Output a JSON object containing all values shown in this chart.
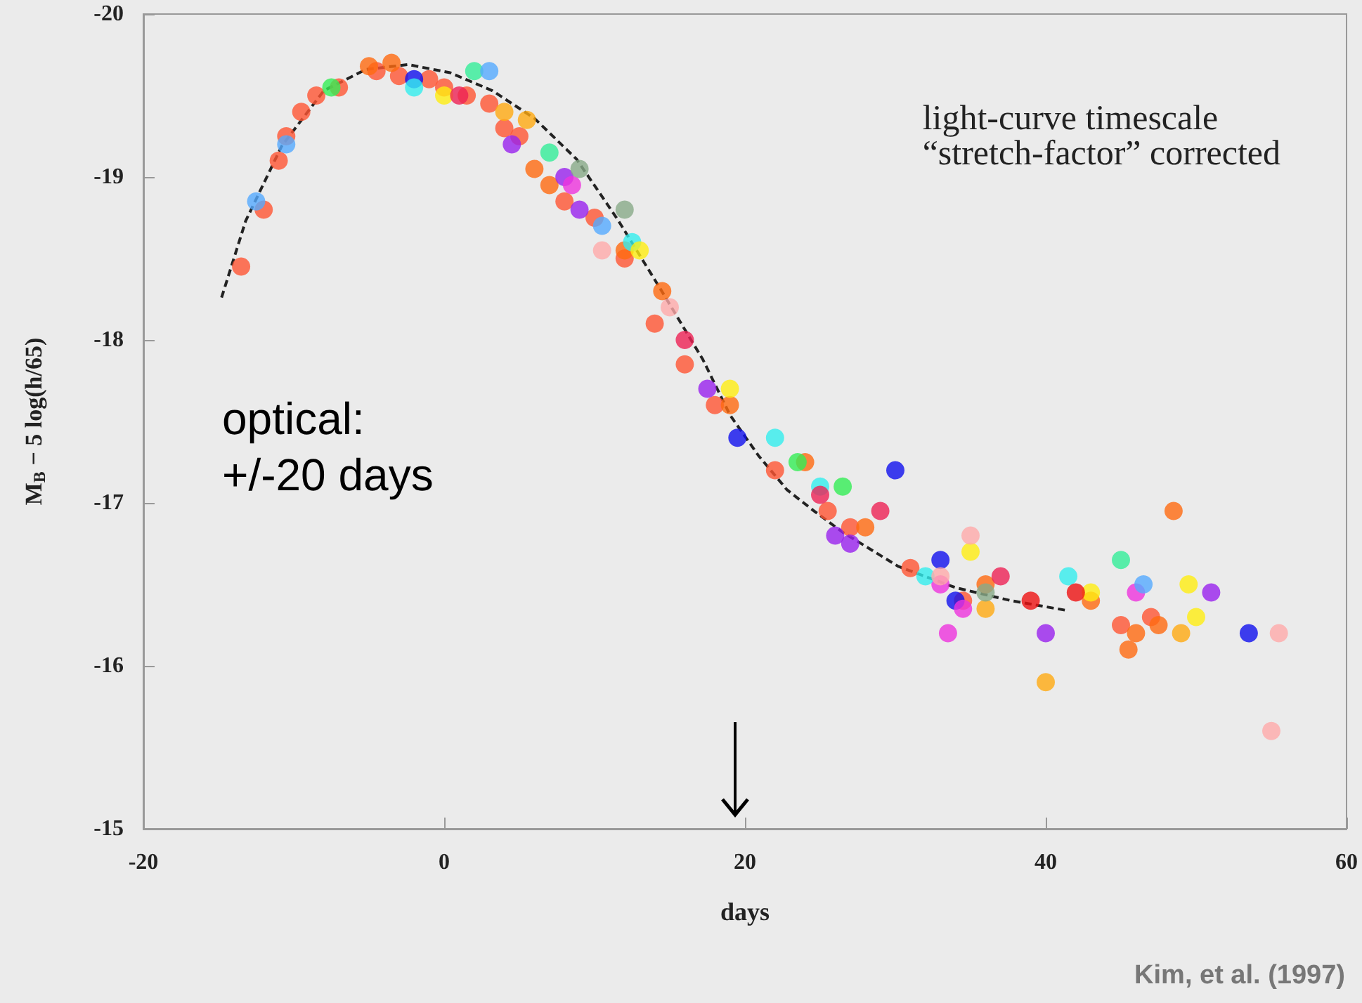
{
  "chart_data": {
    "type": "scatter",
    "xlabel": "days",
    "ylabel": "M$_{B}$ − 5 log(h/65)",
    "xlim": [
      -20,
      60
    ],
    "xticks": [
      -20,
      0,
      20,
      40,
      60
    ],
    "ylim": [
      -15,
      -20
    ],
    "yticks": [
      -15,
      -16,
      -17,
      -18,
      -19,
      -20
    ],
    "grid": false,
    "marker": "circle",
    "annotations": [
      "light-curve timescale\n“stretch-factor” corrected",
      "optical:\n+/-20 days",
      "Kim, et al. (1997)"
    ],
    "series": [
      {
        "type": "line",
        "color": "#222222",
        "line_style": "dashed",
        "marker": "none",
        "x": [
          -14.8,
          -13.2,
          -10.8,
          -8.0,
          -5.2,
          -2.4,
          0.4,
          3.2,
          6.0,
          8.8,
          11.6,
          14.4,
          17.2,
          19.0,
          20.9,
          22.8,
          24.6,
          26.5,
          30.2,
          34.0,
          37.7,
          41.4
        ],
        "values": [
          -18.26,
          -18.73,
          -19.19,
          -19.53,
          -19.66,
          -19.69,
          -19.64,
          -19.53,
          -19.36,
          -19.11,
          -18.73,
          -18.31,
          -17.88,
          -17.54,
          -17.29,
          -17.08,
          -16.95,
          -16.82,
          -16.61,
          -16.48,
          -16.4,
          -16.34
        ]
      },
      {
        "color": "#ff5533",
        "x": [
          -13.5,
          -12,
          -11,
          -10.5,
          -9.5,
          -8.5,
          -7,
          -4.5,
          -3,
          -1,
          0,
          1.5,
          3,
          4,
          5,
          8,
          10,
          12,
          14,
          16,
          18,
          22,
          25.5,
          27,
          31,
          34.5,
          45,
          47
        ],
        "values": [
          -18.45,
          -18.8,
          -19.1,
          -19.25,
          -19.4,
          -19.5,
          -19.55,
          -19.65,
          -19.62,
          -19.6,
          -19.55,
          -19.5,
          -19.45,
          -19.3,
          -19.25,
          -18.85,
          -18.75,
          -18.5,
          -18.1,
          -17.85,
          -17.6,
          -17.2,
          -16.95,
          -16.85,
          -16.6,
          -16.4,
          -16.25,
          -16.3
        ]
      },
      {
        "color": "#ff6a10",
        "x": [
          -3.5,
          -5,
          6,
          7,
          12,
          14.5,
          19,
          24,
          28,
          36,
          43,
          46,
          47.5,
          48.5,
          45.5
        ],
        "values": [
          -19.7,
          -19.68,
          -19.05,
          -18.95,
          -18.55,
          -18.3,
          -17.6,
          -17.25,
          -16.85,
          -16.5,
          -16.4,
          -16.2,
          -16.25,
          -16.95,
          -16.1
        ]
      },
      {
        "color": "#ffaa11",
        "x": [
          4,
          5.5,
          36,
          40,
          49
        ],
        "values": [
          -19.4,
          -19.35,
          -16.35,
          -15.9,
          -16.2
        ]
      },
      {
        "color": "#1010ee",
        "x": [
          -2,
          19.5,
          30,
          33,
          34,
          53.5
        ],
        "values": [
          -19.6,
          -17.4,
          -17.2,
          -16.65,
          -16.4,
          -16.2
        ]
      },
      {
        "color": "#9922ee",
        "x": [
          4.5,
          8,
          9,
          17.5,
          26,
          27,
          40,
          51
        ],
        "values": [
          -19.2,
          -19.0,
          -18.8,
          -17.7,
          -16.8,
          -16.75,
          -16.2,
          -16.45
        ]
      },
      {
        "color": "#ee33dd",
        "x": [
          8.5,
          33.5,
          34.5,
          46,
          33
        ],
        "values": [
          -18.95,
          -16.2,
          -16.35,
          -16.45,
          -16.5
        ]
      },
      {
        "color": "#33eeee",
        "x": [
          -2,
          12.5,
          22,
          25,
          32,
          41.5
        ],
        "values": [
          -19.55,
          -18.6,
          -17.4,
          -17.1,
          -16.55,
          -16.55
        ]
      },
      {
        "color": "#33ee55",
        "x": [
          -7.5,
          23.5,
          26.5
        ],
        "values": [
          -19.55,
          -17.25,
          -17.1
        ]
      },
      {
        "color": "#33ee99",
        "x": [
          2,
          7,
          45
        ],
        "values": [
          -19.65,
          -19.15,
          -16.65
        ]
      },
      {
        "color": "#ffee11",
        "x": [
          0,
          13,
          19,
          35,
          43,
          49.5,
          50
        ],
        "values": [
          -19.5,
          -18.55,
          -17.7,
          -16.7,
          -16.45,
          -16.5,
          -16.3
        ]
      },
      {
        "color": "#55aaff",
        "x": [
          -12.5,
          -10.5,
          3,
          46.5,
          10.5
        ],
        "values": [
          -18.85,
          -19.2,
          -19.65,
          -16.5,
          -18.7
        ]
      },
      {
        "color": "#ffaaaa",
        "x": [
          10.5,
          15,
          33,
          55.5,
          55,
          35
        ],
        "values": [
          -18.55,
          -18.2,
          -16.55,
          -16.2,
          -15.6,
          -16.8
        ]
      },
      {
        "color": "#ee2255",
        "x": [
          1,
          16,
          25,
          29,
          37
        ],
        "values": [
          -19.5,
          -18,
          -17.05,
          -16.95,
          -16.55
        ]
      },
      {
        "color": "#88aa88",
        "x": [
          9,
          12,
          36
        ],
        "values": [
          -19.05,
          -18.8,
          -16.45
        ]
      },
      {
        "color": "#ee1111",
        "x": [
          39,
          42
        ],
        "values": [
          -16.4,
          -16.45
        ]
      }
    ]
  }
}
